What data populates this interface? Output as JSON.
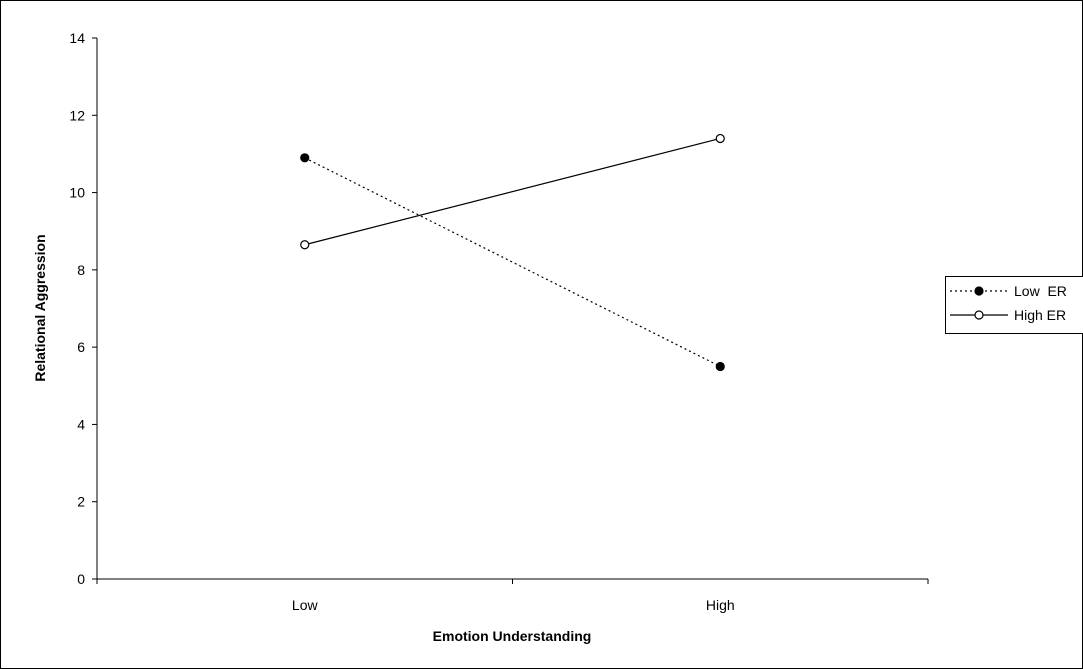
{
  "chart_data": {
    "type": "line",
    "xlabel": "Emotion Understanding",
    "ylabel": "Relational Aggression",
    "categories": [
      "Low",
      "High"
    ],
    "ylim": [
      0,
      14
    ],
    "yticks": [
      0,
      2,
      4,
      6,
      8,
      10,
      12,
      14
    ],
    "grid": false,
    "legend_position": "right",
    "series": [
      {
        "name": "Low  ER",
        "values": [
          10.9,
          5.5
        ],
        "line_style": "dotted",
        "marker": "filled-circle",
        "color": "#000000"
      },
      {
        "name": "High ER",
        "values": [
          8.65,
          11.4
        ],
        "line_style": "solid",
        "marker": "open-circle",
        "color": "#000000"
      }
    ]
  }
}
